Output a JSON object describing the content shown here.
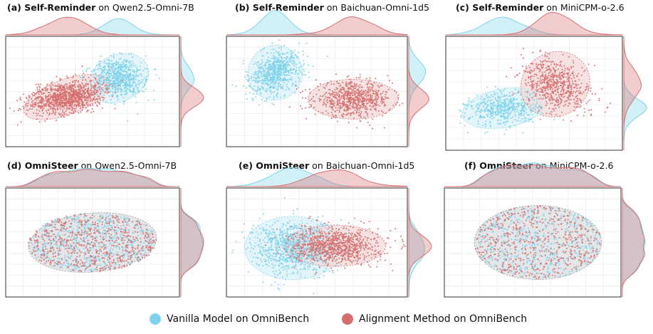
{
  "colors": {
    "vanilla": "#7fd3ea",
    "alignment": "#d67070",
    "vanilla_fill": "#d9f1f8",
    "alignment_fill": "#f3d8d8",
    "overlap_fill": "#dcdde0",
    "frame": "#333333",
    "grid": "#ececec"
  },
  "legend": {
    "vanilla_label": "Vanilla Model on OmniBench",
    "alignment_label": "Alignment Method on OmniBench"
  },
  "chart_data": [
    {
      "type": "scatter",
      "id": "a",
      "prefix": "(a)",
      "method": "Self-Reminder",
      "model": "Qwen2.5-Omni-7B",
      "xlim": [
        0,
        100
      ],
      "ylim": [
        0,
        100
      ],
      "clusters": [
        {
          "series": "vanilla",
          "center": [
            65,
            62
          ],
          "radii": [
            18,
            21
          ],
          "angle": -25,
          "count": 750
        },
        {
          "series": "alignment",
          "center": [
            35,
            45
          ],
          "radii": [
            26,
            16
          ],
          "angle": -20,
          "count": 1100
        }
      ]
    },
    {
      "type": "scatter",
      "id": "b",
      "prefix": "(b)",
      "method": "Self-Reminder",
      "model": "Baichuan-Omni-1d5",
      "xlim": [
        0,
        100
      ],
      "ylim": [
        0,
        100
      ],
      "clusters": [
        {
          "series": "vanilla",
          "center": [
            27,
            67
          ],
          "radii": [
            15,
            25
          ],
          "angle": 18,
          "count": 750
        },
        {
          "series": "alignment",
          "center": [
            70,
            43
          ],
          "radii": [
            25,
            18
          ],
          "angle": 0,
          "count": 750
        }
      ]
    },
    {
      "type": "scatter",
      "id": "c",
      "prefix": "(c)",
      "method": "Self-Reminder",
      "model": "MiniCPM-o-2.6",
      "xlim": [
        0,
        100
      ],
      "ylim": [
        0,
        100
      ],
      "clusters": [
        {
          "series": "vanilla",
          "center": [
            33,
            37
          ],
          "radii": [
            24,
            17
          ],
          "angle": -10,
          "count": 550
        },
        {
          "series": "alignment",
          "center": [
            62,
            58
          ],
          "radii": [
            20,
            28
          ],
          "angle": -28,
          "count": 650
        }
      ]
    },
    {
      "type": "scatter",
      "id": "d",
      "prefix": "(d)",
      "method": "OmniSteer",
      "model": "Qwen2.5-Omni-7B",
      "xlim": [
        0,
        100
      ],
      "ylim": [
        0,
        100
      ],
      "clusters": [
        {
          "series": "vanilla",
          "center": [
            50,
            50
          ],
          "radii": [
            37,
            27
          ],
          "angle": -5,
          "count": 700
        },
        {
          "series": "alignment",
          "center": [
            50,
            50
          ],
          "radii": [
            37,
            27
          ],
          "angle": -5,
          "count": 700
        }
      ]
    },
    {
      "type": "scatter",
      "id": "e",
      "prefix": "(e)",
      "method": "OmniSteer",
      "model": "Baichuan-Omni-1d5",
      "xlim": [
        0,
        100
      ],
      "ylim": [
        0,
        100
      ],
      "clusters": [
        {
          "series": "vanilla",
          "center": [
            37,
            45
          ],
          "radii": [
            27,
            29
          ],
          "angle": 0,
          "count": 950
        },
        {
          "series": "alignment",
          "center": [
            60,
            47
          ],
          "radii": [
            28,
            19
          ],
          "angle": 0,
          "count": 950
        }
      ]
    },
    {
      "type": "scatter",
      "id": "f",
      "prefix": "(f)",
      "method": "OmniSteer",
      "model": "MiniCPM-o-2.6",
      "xlim": [
        0,
        100
      ],
      "ylim": [
        0,
        100
      ],
      "clusters": [
        {
          "series": "vanilla",
          "center": [
            53,
            50
          ],
          "radii": [
            36,
            34
          ],
          "angle": 0,
          "count": 600
        },
        {
          "series": "alignment",
          "center": [
            53,
            50
          ],
          "radii": [
            36,
            34
          ],
          "angle": 0,
          "count": 600
        }
      ]
    }
  ]
}
